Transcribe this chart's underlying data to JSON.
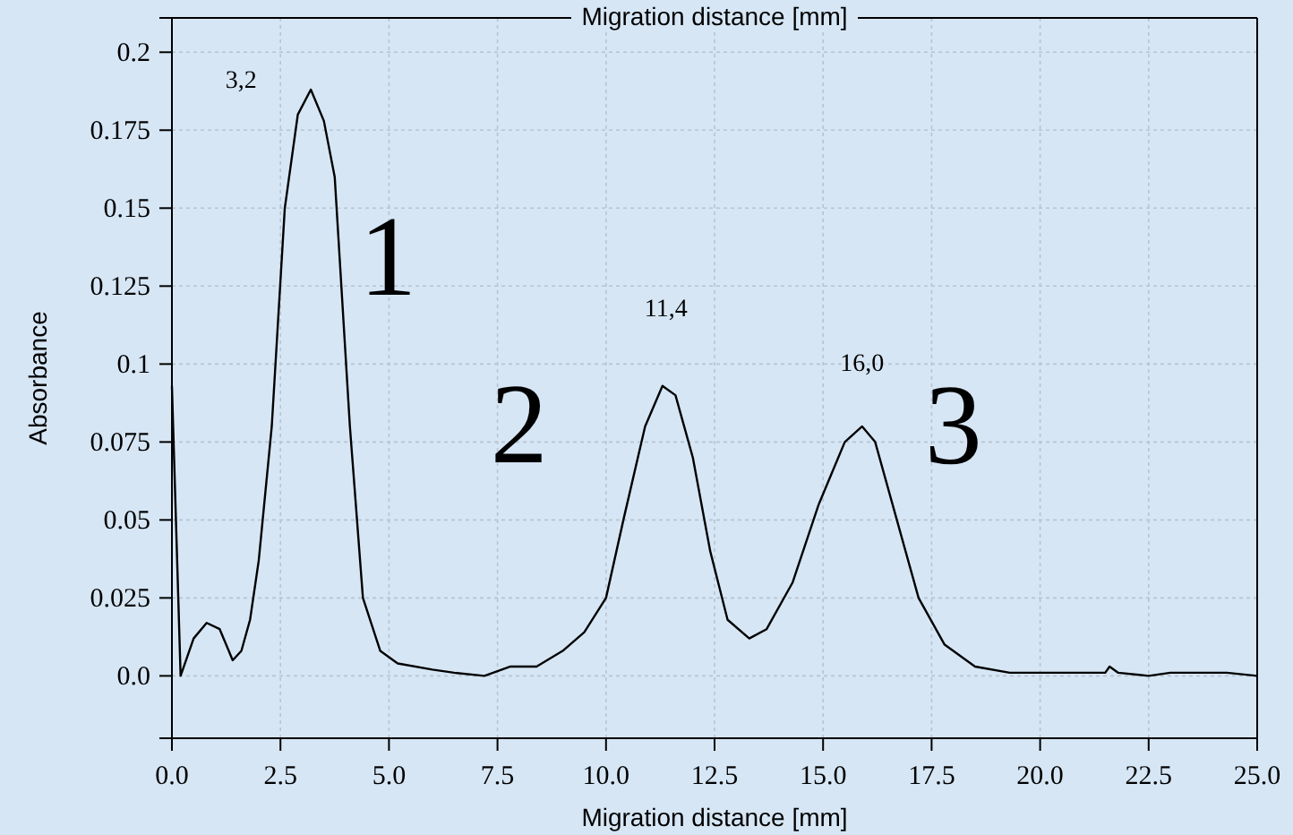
{
  "chart_data": {
    "type": "line",
    "title": "Migration distance [mm]",
    "xlabel": "Migration distance [mm]",
    "ylabel": "Absorbance",
    "xlim": [
      0,
      25
    ],
    "ylim": [
      -0.02,
      0.211
    ],
    "xticks": [
      {
        "value": 0,
        "label": "0.0"
      },
      2.5,
      {
        "value": 5,
        "label": "5.0"
      },
      7.5,
      {
        "value": 10,
        "label": "10.0"
      },
      12.5,
      {
        "value": 15,
        "label": "15.0"
      },
      17.5,
      {
        "value": 20,
        "label": "20.0"
      },
      22.5,
      {
        "value": 25,
        "label": "25.0"
      }
    ],
    "yticks": [
      {
        "value": 0,
        "label": "0.0"
      },
      0.025,
      0.05,
      0.075,
      0.1,
      0.125,
      0.15,
      0.175,
      0.2
    ],
    "grid": true,
    "marker": "none",
    "line_style": "solid",
    "series": [
      {
        "color": "#000000",
        "x": [
          0,
          0.2,
          0.5,
          0.8,
          1.1,
          1.4,
          1.6,
          1.8,
          2.0,
          2.3,
          2.6,
          2.9,
          3.2,
          3.5,
          3.75,
          4.1,
          4.4,
          4.8,
          5.2,
          6.0,
          6.5,
          7.2,
          7.8,
          8.4,
          9.0,
          9.5,
          10.0,
          10.4,
          10.9,
          11.3,
          11.6,
          12.0,
          12.4,
          12.8,
          13.3,
          13.7,
          14.3,
          14.9,
          15.5,
          15.9,
          16.2,
          16.7,
          17.2,
          17.8,
          18.5,
          19.3,
          20.5,
          21.5,
          21.6,
          21.8,
          22.5,
          23.0,
          24.3,
          25.0
        ],
        "values": [
          0.093,
          0.0,
          0.012,
          0.017,
          0.015,
          0.005,
          0.008,
          0.018,
          0.037,
          0.08,
          0.15,
          0.18,
          0.188,
          0.178,
          0.16,
          0.08,
          0.025,
          0.008,
          0.004,
          0.002,
          0.001,
          0.0,
          0.003,
          0.003,
          0.008,
          0.014,
          0.025,
          0.05,
          0.08,
          0.093,
          0.09,
          0.07,
          0.04,
          0.018,
          0.012,
          0.015,
          0.03,
          0.055,
          0.075,
          0.08,
          0.075,
          0.05,
          0.025,
          0.01,
          0.003,
          0.001,
          0.001,
          0.001,
          0.003,
          0.001,
          0.0,
          0.001,
          0.001,
          0.0
        ]
      }
    ],
    "annotations": [
      {
        "text": "3,2",
        "x": 3.2,
        "y": 0.188
      },
      {
        "text": "11,4",
        "x": 11.3,
        "y": 0.093
      },
      {
        "text": "16,0",
        "x": 15.9,
        "y": 0.08
      },
      {
        "text": "1",
        "x": 3.2,
        "y": 0.188
      },
      {
        "text": "2",
        "x": 11.3,
        "y": 0.093
      },
      {
        "text": "3",
        "x": 15.9,
        "y": 0.08
      }
    ]
  }
}
